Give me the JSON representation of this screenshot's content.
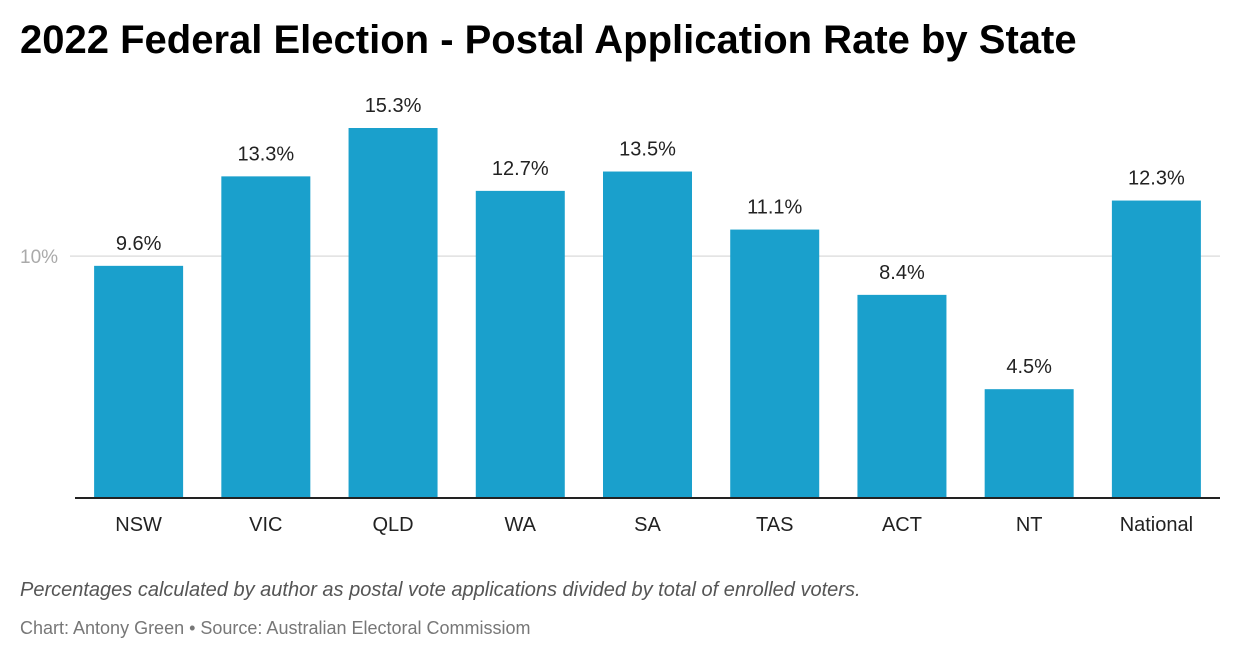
{
  "colors": {
    "bar": "#1aa0cc",
    "gridline": "#e0e0e0",
    "axis": "#222222"
  },
  "footer": {
    "note": "Percentages calculated by author as postal vote applications divided by total of enrolled voters.",
    "credit": "Chart: Antony Green • Source: Australian Electoral Commissiom"
  },
  "chart_data": {
    "type": "bar",
    "title": "2022 Federal Election - Postal Application Rate by State",
    "xlabel": "",
    "ylabel": "",
    "categories": [
      "NSW",
      "VIC",
      "QLD",
      "WA",
      "SA",
      "TAS",
      "ACT",
      "NT",
      "National"
    ],
    "values": [
      9.6,
      13.3,
      15.3,
      12.7,
      13.5,
      11.1,
      8.4,
      4.5,
      12.3
    ],
    "value_labels": [
      "9.6%",
      "13.3%",
      "15.3%",
      "12.7%",
      "13.5%",
      "11.1%",
      "8.4%",
      "4.5%",
      "12.3%"
    ],
    "y_ticks": [
      10
    ],
    "y_tick_labels": [
      "10%"
    ],
    "ylim": [
      0,
      15.3
    ],
    "grid": true,
    "legend": "none"
  }
}
